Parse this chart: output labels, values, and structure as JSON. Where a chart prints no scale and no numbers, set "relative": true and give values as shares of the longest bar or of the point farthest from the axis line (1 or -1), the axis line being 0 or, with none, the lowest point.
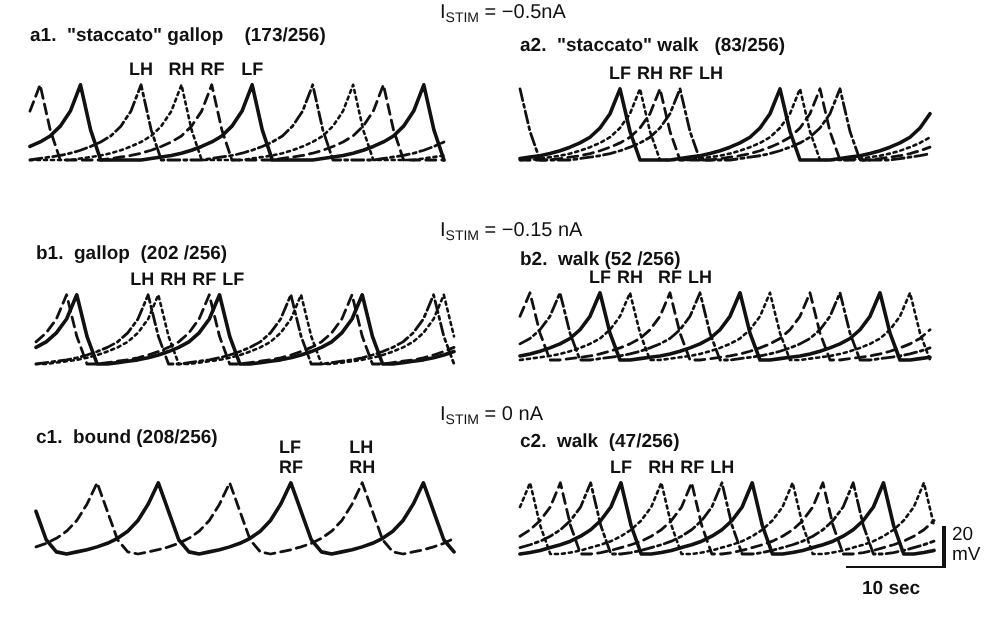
{
  "chart_data": [
    {
      "type": "line",
      "title": "a1.  \"staccato\" gallop    (173/256)",
      "relative": true,
      "tick_labels": false,
      "marker": "none",
      "legend": false,
      "annotations": [
        "I$_{STIM}$ = −0.5nA"
      ],
      "categories": [
        null,
        null,
        null,
        null,
        null,
        null,
        null,
        null,
        null,
        null,
        null,
        null,
        null,
        null,
        null,
        null,
        null,
        null,
        null,
        null,
        null,
        null,
        null,
        null,
        null,
        null,
        null,
        null,
        null,
        null,
        null,
        null,
        null,
        null,
        null,
        null,
        null,
        null,
        null,
        null,
        null,
        null
      ],
      "series": [
        {
          "name": "LH",
          "color": "#111111",
          "line_style": "dashdot",
          "values": [
            0,
            0.02,
            0.04,
            0.06,
            0.09,
            0.13,
            0.18,
            0.24,
            0.32,
            0.45,
            0.65,
            1,
            0.4,
            0,
            0,
            0,
            0,
            0,
            0.02,
            0.04,
            0.06,
            0.09,
            0.13,
            0.18,
            0.24,
            0.32,
            0.45,
            0.65,
            1,
            0.4,
            0,
            0,
            0,
            0,
            0,
            0.02,
            0.04,
            0.06,
            0.09,
            0.13,
            0.18,
            0.24
          ]
        },
        {
          "name": "RH",
          "color": "#111111",
          "line_style": "dotted",
          "values": [
            0,
            0,
            0,
            0,
            0,
            0.02,
            0.04,
            0.06,
            0.09,
            0.13,
            0.18,
            0.24,
            0.32,
            0.45,
            0.65,
            1,
            0.4,
            0,
            0,
            0,
            0,
            0,
            0.02,
            0.04,
            0.06,
            0.09,
            0.13,
            0.18,
            0.24,
            0.32,
            0.45,
            0.65,
            1,
            0.4,
            0,
            0,
            0,
            0,
            0,
            0.02,
            0.04,
            0.06
          ]
        },
        {
          "name": "RF",
          "color": "#111111",
          "line_style": "dashed",
          "values": [
            0.65,
            1,
            0.4,
            0,
            0,
            0,
            0,
            0,
            0.02,
            0.04,
            0.06,
            0.09,
            0.13,
            0.18,
            0.24,
            0.32,
            0.45,
            0.65,
            1,
            0.4,
            0,
            0,
            0,
            0,
            0,
            0.02,
            0.04,
            0.06,
            0.09,
            0.13,
            0.18,
            0.24,
            0.32,
            0.45,
            0.65,
            1,
            0.4,
            0,
            0,
            0,
            0,
            0
          ]
        },
        {
          "name": "LF",
          "color": "#111111",
          "line_style": "solid",
          "values": [
            0.18,
            0.24,
            0.32,
            0.45,
            0.65,
            1,
            0.4,
            0,
            0,
            0,
            0,
            0,
            0.02,
            0.04,
            0.06,
            0.09,
            0.13,
            0.18,
            0.24,
            0.32,
            0.45,
            0.65,
            1,
            0.4,
            0,
            0,
            0,
            0,
            0,
            0.02,
            0.04,
            0.06,
            0.09,
            0.13,
            0.18,
            0.24,
            0.32,
            0.45,
            0.65,
            1,
            0.4,
            0
          ]
        }
      ]
    },
    {
      "type": "line",
      "title": "a2.  \"staccato\" walk   (83/256)",
      "relative": true,
      "tick_labels": false,
      "marker": "none",
      "legend": false,
      "categories": [
        null,
        null,
        null,
        null,
        null,
        null,
        null,
        null,
        null,
        null,
        null,
        null,
        null,
        null,
        null,
        null,
        null,
        null,
        null,
        null,
        null,
        null,
        null,
        null,
        null,
        null,
        null,
        null,
        null,
        null,
        null,
        null,
        null,
        null,
        null,
        null,
        null,
        null,
        null,
        null,
        null,
        null
      ],
      "series": [
        {
          "name": "LF",
          "color": "#111111",
          "line_style": "solid",
          "values": [
            0.02,
            0.04,
            0.06,
            0.09,
            0.13,
            0.18,
            0.24,
            0.32,
            0.45,
            0.65,
            1,
            0.4,
            0,
            0,
            0,
            0,
            0.02,
            0.04,
            0.06,
            0.09,
            0.13,
            0.18,
            0.24,
            0.32,
            0.45,
            0.65,
            1,
            0.4,
            0,
            0,
            0,
            0,
            0.02,
            0.04,
            0.06,
            0.09,
            0.13,
            0.18,
            0.24,
            0.32,
            0.45,
            0.65
          ]
        },
        {
          "name": "RH",
          "color": "#111111",
          "line_style": "dotted",
          "values": [
            0,
            0,
            0.02,
            0.04,
            0.06,
            0.09,
            0.13,
            0.18,
            0.24,
            0.32,
            0.45,
            0.65,
            1,
            0.4,
            0,
            0,
            0,
            0,
            0.02,
            0.04,
            0.06,
            0.09,
            0.13,
            0.18,
            0.24,
            0.32,
            0.45,
            0.65,
            1,
            0.4,
            0,
            0,
            0,
            0,
            0.02,
            0.04,
            0.06,
            0.09,
            0.13,
            0.18,
            0.24,
            0.32
          ]
        },
        {
          "name": "RF",
          "color": "#111111",
          "line_style": "dashed",
          "values": [
            0,
            0,
            0,
            0,
            0.02,
            0.04,
            0.06,
            0.09,
            0.13,
            0.18,
            0.24,
            0.32,
            0.45,
            0.65,
            1,
            0.4,
            0,
            0,
            0,
            0,
            0.02,
            0.04,
            0.06,
            0.09,
            0.13,
            0.18,
            0.24,
            0.32,
            0.45,
            0.65,
            1,
            0.4,
            0,
            0,
            0,
            0,
            0.02,
            0.04,
            0.06,
            0.09,
            0.13,
            0.18
          ]
        },
        {
          "name": "LH",
          "color": "#111111",
          "line_style": "dashdot",
          "values": [
            1,
            0.4,
            0,
            0,
            0,
            0,
            0.02,
            0.04,
            0.06,
            0.09,
            0.13,
            0.18,
            0.24,
            0.32,
            0.45,
            0.65,
            1,
            0.4,
            0,
            0,
            0,
            0,
            0.02,
            0.04,
            0.06,
            0.09,
            0.13,
            0.18,
            0.24,
            0.32,
            0.45,
            0.65,
            1,
            0.4,
            0,
            0,
            0,
            0,
            0.02,
            0.04,
            0.06,
            0.09
          ]
        }
      ]
    },
    {
      "type": "line",
      "title": "b1.  gallop  (202 /256)",
      "relative": true,
      "tick_labels": false,
      "marker": "none",
      "legend": false,
      "annotations": [
        "I$_{STIM}$ = −0.15 nA"
      ],
      "categories": [
        null,
        null,
        null,
        null,
        null,
        null,
        null,
        null,
        null,
        null,
        null,
        null,
        null,
        null,
        null,
        null,
        null,
        null,
        null,
        null,
        null,
        null,
        null,
        null,
        null,
        null,
        null,
        null,
        null,
        null,
        null,
        null,
        null,
        null,
        null,
        null,
        null,
        null,
        null,
        null,
        null,
        null
      ],
      "series": [
        {
          "name": "LH",
          "color": "#111111",
          "line_style": "dashdot",
          "values": [
            0,
            0.02,
            0.04,
            0.06,
            0.09,
            0.13,
            0.18,
            0.24,
            0.32,
            0.45,
            0.65,
            1,
            0.4,
            0,
            0,
            0.02,
            0.04,
            0.06,
            0.09,
            0.13,
            0.18,
            0.24,
            0.32,
            0.45,
            0.65,
            1,
            0.4,
            0,
            0,
            0.02,
            0.04,
            0.06,
            0.09,
            0.13,
            0.18,
            0.24,
            0.32,
            0.45,
            0.65,
            1,
            0.4,
            0
          ]
        },
        {
          "name": "RH",
          "color": "#111111",
          "line_style": "dotted",
          "values": [
            0,
            0,
            0.02,
            0.04,
            0.06,
            0.09,
            0.13,
            0.18,
            0.24,
            0.32,
            0.45,
            0.65,
            1,
            0.4,
            0,
            0,
            0.02,
            0.04,
            0.06,
            0.09,
            0.13,
            0.18,
            0.24,
            0.32,
            0.45,
            0.65,
            1,
            0.4,
            0,
            0,
            0.02,
            0.04,
            0.06,
            0.09,
            0.13,
            0.18,
            0.24,
            0.32,
            0.45,
            0.65,
            1,
            0.4
          ]
        },
        {
          "name": "RF",
          "color": "#111111",
          "line_style": "dashed",
          "values": [
            0.32,
            0.45,
            0.65,
            1,
            0.4,
            0,
            0,
            0.02,
            0.04,
            0.06,
            0.09,
            0.13,
            0.18,
            0.24,
            0.32,
            0.45,
            0.65,
            1,
            0.4,
            0,
            0,
            0.02,
            0.04,
            0.06,
            0.09,
            0.13,
            0.18,
            0.24,
            0.32,
            0.45,
            0.65,
            1,
            0.4,
            0,
            0,
            0.02,
            0.04,
            0.06,
            0.09,
            0.13,
            0.18,
            0.24
          ]
        },
        {
          "name": "LF",
          "color": "#111111",
          "line_style": "solid",
          "values": [
            0.24,
            0.32,
            0.45,
            0.65,
            1,
            0.4,
            0,
            0,
            0.02,
            0.04,
            0.06,
            0.09,
            0.13,
            0.18,
            0.24,
            0.32,
            0.45,
            0.65,
            1,
            0.4,
            0,
            0,
            0.02,
            0.04,
            0.06,
            0.09,
            0.13,
            0.18,
            0.24,
            0.32,
            0.45,
            0.65,
            1,
            0.4,
            0,
            0,
            0.02,
            0.04,
            0.06,
            0.09,
            0.13,
            0.18
          ]
        }
      ]
    },
    {
      "type": "line",
      "title": "b2.  walk (52 /256)",
      "relative": true,
      "tick_labels": false,
      "marker": "none",
      "legend": false,
      "categories": [
        null,
        null,
        null,
        null,
        null,
        null,
        null,
        null,
        null,
        null,
        null,
        null,
        null,
        null,
        null,
        null,
        null,
        null,
        null,
        null,
        null,
        null,
        null,
        null,
        null,
        null,
        null,
        null,
        null,
        null,
        null,
        null,
        null,
        null,
        null,
        null,
        null,
        null,
        null,
        null,
        null,
        null
      ],
      "series": [
        {
          "name": "LF",
          "color": "#111111",
          "line_style": "solid",
          "values": [
            0.06,
            0.09,
            0.13,
            0.18,
            0.24,
            0.32,
            0.45,
            0.65,
            1,
            0.4,
            0,
            0,
            0.02,
            0.04,
            0.06,
            0.09,
            0.13,
            0.18,
            0.24,
            0.32,
            0.45,
            0.65,
            1,
            0.4,
            0,
            0,
            0.02,
            0.04,
            0.06,
            0.09,
            0.13,
            0.18,
            0.24,
            0.32,
            0.45,
            0.65,
            1,
            0.4,
            0,
            0,
            0.02,
            0.04
          ]
        },
        {
          "name": "RH",
          "color": "#111111",
          "line_style": "dotted",
          "values": [
            0,
            0.02,
            0.04,
            0.06,
            0.09,
            0.13,
            0.18,
            0.24,
            0.32,
            0.45,
            0.65,
            1,
            0.4,
            0,
            0,
            0.02,
            0.04,
            0.06,
            0.09,
            0.13,
            0.18,
            0.24,
            0.32,
            0.45,
            0.65,
            1,
            0.4,
            0,
            0,
            0.02,
            0.04,
            0.06,
            0.09,
            0.13,
            0.18,
            0.24,
            0.32,
            0.45,
            0.65,
            1,
            0.4,
            0
          ]
        },
        {
          "name": "RF",
          "color": "#111111",
          "line_style": "dashed",
          "values": [
            0.65,
            1,
            0.4,
            0,
            0,
            0.02,
            0.04,
            0.06,
            0.09,
            0.13,
            0.18,
            0.24,
            0.32,
            0.45,
            0.65,
            1,
            0.4,
            0,
            0,
            0.02,
            0.04,
            0.06,
            0.09,
            0.13,
            0.18,
            0.24,
            0.32,
            0.45,
            0.65,
            1,
            0.4,
            0,
            0,
            0.02,
            0.04,
            0.06,
            0.09,
            0.13,
            0.18,
            0.24,
            0.32,
            0.45
          ]
        },
        {
          "name": "LH",
          "color": "#111111",
          "line_style": "dashdot",
          "values": [
            0.24,
            0.32,
            0.45,
            0.65,
            1,
            0.4,
            0,
            0,
            0.02,
            0.04,
            0.06,
            0.09,
            0.13,
            0.18,
            0.24,
            0.32,
            0.45,
            0.65,
            1,
            0.4,
            0,
            0,
            0.02,
            0.04,
            0.06,
            0.09,
            0.13,
            0.18,
            0.24,
            0.32,
            0.45,
            0.65,
            1,
            0.4,
            0,
            0,
            0.02,
            0.04,
            0.06,
            0.09,
            0.13,
            0.18
          ]
        }
      ]
    },
    {
      "type": "line",
      "title": "c1.  bound (208/256)",
      "relative": true,
      "tick_labels": false,
      "marker": "none",
      "legend": false,
      "annotations": [
        "I$_{STIM}$ = 0 nA"
      ],
      "categories": [
        null,
        null,
        null,
        null,
        null,
        null,
        null,
        null,
        null,
        null,
        null,
        null,
        null,
        null,
        null,
        null,
        null,
        null,
        null,
        null,
        null,
        null,
        null,
        null,
        null,
        null,
        null,
        null,
        null,
        null,
        null,
        null,
        null,
        null,
        null,
        null,
        null,
        null,
        null,
        null,
        null,
        null
      ],
      "series": [
        {
          "name": "LF\nRF",
          "color": "#111111",
          "line_style": "solid",
          "values": [
            0.6,
            0.2,
            0.03,
            0,
            0.03,
            0.06,
            0.1,
            0.15,
            0.22,
            0.32,
            0.47,
            0.7,
            1,
            0.6,
            0.2,
            0.03,
            0,
            0.03,
            0.06,
            0.1,
            0.15,
            0.22,
            0.32,
            0.47,
            0.7,
            1,
            0.6,
            0.2,
            0.03,
            0,
            0.03,
            0.06,
            0.1,
            0.15,
            0.22,
            0.32,
            0.47,
            0.7,
            1,
            0.6,
            0.2,
            0.03
          ]
        },
        {
          "name": "LH\nRH",
          "color": "#111111",
          "line_style": "dashed",
          "values": [
            0.1,
            0.15,
            0.22,
            0.32,
            0.47,
            0.7,
            1,
            0.6,
            0.2,
            0.03,
            0,
            0.03,
            0.06,
            0.1,
            0.15,
            0.22,
            0.32,
            0.47,
            0.7,
            1,
            0.6,
            0.2,
            0.03,
            0,
            0.03,
            0.06,
            0.1,
            0.15,
            0.22,
            0.32,
            0.47,
            0.7,
            1,
            0.6,
            0.2,
            0.03,
            0,
            0.03,
            0.06,
            0.1,
            0.15,
            0.22
          ]
        }
      ]
    },
    {
      "type": "line",
      "title": "c2.  walk  (47/256)",
      "relative": true,
      "tick_labels": false,
      "marker": "none",
      "legend": false,
      "annotations": [
        "20 mV",
        "10 sec"
      ],
      "categories": [
        null,
        null,
        null,
        null,
        null,
        null,
        null,
        null,
        null,
        null,
        null,
        null,
        null,
        null,
        null,
        null,
        null,
        null,
        null,
        null,
        null,
        null,
        null,
        null,
        null,
        null,
        null,
        null,
        null,
        null,
        null,
        null,
        null,
        null,
        null,
        null,
        null,
        null,
        null,
        null,
        null,
        null
      ],
      "series": [
        {
          "name": "LF",
          "color": "#111111",
          "line_style": "solid",
          "values": [
            0,
            0.02,
            0.05,
            0.09,
            0.13,
            0.18,
            0.25,
            0.34,
            0.47,
            0.66,
            1,
            0.4,
            0,
            0,
            0.02,
            0.05,
            0.09,
            0.13,
            0.18,
            0.25,
            0.34,
            0.47,
            0.66,
            1,
            0.4,
            0,
            0,
            0.02,
            0.05,
            0.09,
            0.13,
            0.18,
            0.25,
            0.34,
            0.47,
            0.66,
            1,
            0.4,
            0,
            0,
            0.02,
            0.05
          ]
        },
        {
          "name": "RH",
          "color": "#111111",
          "line_style": "dotted",
          "values": [
            0.66,
            1,
            0.4,
            0,
            0,
            0.02,
            0.05,
            0.09,
            0.13,
            0.18,
            0.25,
            0.34,
            0.47,
            0.66,
            1,
            0.4,
            0,
            0,
            0.02,
            0.05,
            0.09,
            0.13,
            0.18,
            0.25,
            0.34,
            0.47,
            0.66,
            1,
            0.4,
            0,
            0,
            0.02,
            0.05,
            0.09,
            0.13,
            0.18,
            0.25,
            0.34,
            0.47,
            0.66,
            1,
            0.4
          ]
        },
        {
          "name": "RF",
          "color": "#111111",
          "line_style": "dashed",
          "values": [
            0.25,
            0.34,
            0.47,
            0.66,
            1,
            0.4,
            0,
            0,
            0.02,
            0.05,
            0.09,
            0.13,
            0.18,
            0.25,
            0.34,
            0.47,
            0.66,
            1,
            0.4,
            0,
            0,
            0.02,
            0.05,
            0.09,
            0.13,
            0.18,
            0.25,
            0.34,
            0.47,
            0.66,
            1,
            0.4,
            0,
            0,
            0.02,
            0.05,
            0.09,
            0.13,
            0.18,
            0.25,
            0.34,
            0.47
          ]
        },
        {
          "name": "LH",
          "color": "#111111",
          "line_style": "dashdot",
          "values": [
            0.09,
            0.13,
            0.18,
            0.25,
            0.34,
            0.47,
            0.66,
            1,
            0.4,
            0,
            0,
            0.02,
            0.05,
            0.09,
            0.13,
            0.18,
            0.25,
            0.34,
            0.47,
            0.66,
            1,
            0.4,
            0,
            0,
            0.02,
            0.05,
            0.09,
            0.13,
            0.18,
            0.25,
            0.34,
            0.47,
            0.66,
            1,
            0.4,
            0,
            0,
            0.02,
            0.05,
            0.09,
            0.13,
            0.18
          ]
        }
      ]
    }
  ]
}
